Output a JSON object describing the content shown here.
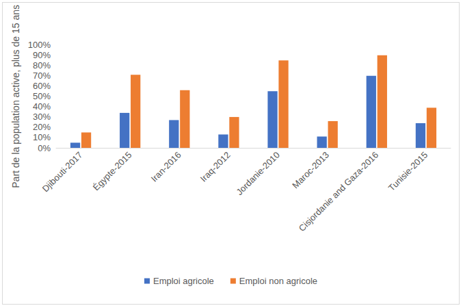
{
  "chart_data": {
    "type": "bar",
    "y_label": "Part de la population active, plus de 15 ans",
    "categories": [
      "Djibouti-2017",
      "Égypte-2015",
      "Iran-2016",
      "Iraq-2012",
      "Jordanie-2010",
      "Maroc-2013",
      "Cisjordanie and Gaza-2016",
      "Tunisie-2015"
    ],
    "series": [
      {
        "name": "Emploi agricole",
        "color": "#4472c4",
        "values": [
          5,
          34,
          27,
          13,
          55,
          11,
          70,
          24
        ]
      },
      {
        "name": "Emploi non agricole",
        "color": "#ed7d31",
        "values": [
          15,
          71,
          56,
          30,
          85,
          26,
          90,
          39
        ]
      }
    ],
    "ylim": [
      0,
      100
    ],
    "yticks": [
      {
        "value": 0,
        "label": "0%"
      },
      {
        "value": 10,
        "label": "10%"
      },
      {
        "value": 20,
        "label": "20%"
      },
      {
        "value": 30,
        "label": "30%"
      },
      {
        "value": 40,
        "label": "40%"
      },
      {
        "value": 50,
        "label": "50%"
      },
      {
        "value": 60,
        "label": "60%"
      },
      {
        "value": 70,
        "label": "70%"
      },
      {
        "value": 80,
        "label": "80%"
      },
      {
        "value": 90,
        "label": "90%"
      },
      {
        "value": 100,
        "label": "100%"
      }
    ],
    "grid": false,
    "legend": "bottom"
  }
}
